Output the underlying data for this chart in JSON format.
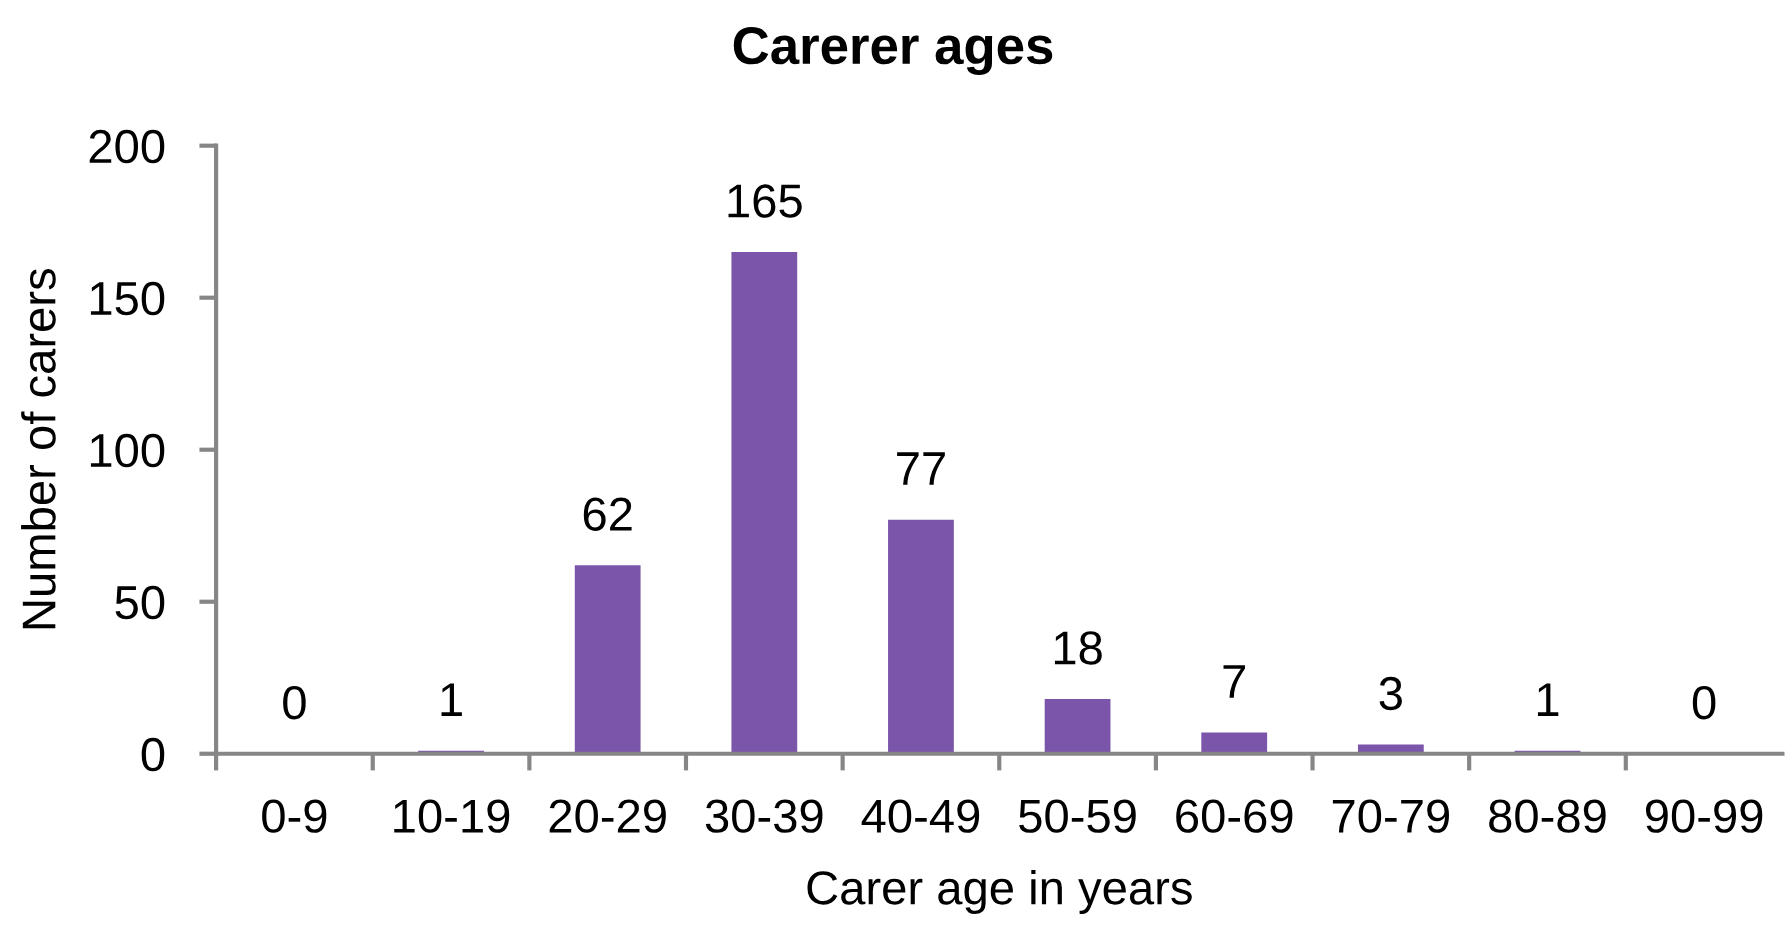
{
  "chart_data": {
    "type": "bar",
    "title": "Carerer ages",
    "xlabel": "Carer age in years",
    "ylabel": "Number of carers",
    "categories": [
      "0-9",
      "10-19",
      "20-29",
      "30-39",
      "40-49",
      "50-59",
      "60-69",
      "70-79",
      "80-89",
      "90-99"
    ],
    "values": [
      0,
      1,
      62,
      165,
      77,
      18,
      7,
      3,
      1,
      0
    ],
    "color": "#7b55aa",
    "ylim": [
      0,
      200
    ],
    "yticks": [
      0,
      50,
      100,
      150,
      200
    ],
    "grid": false,
    "data_labels": true
  }
}
